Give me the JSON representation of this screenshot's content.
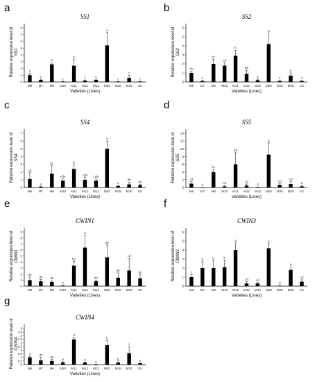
{
  "chart_data": [
    {
      "type": "bar",
      "panel": "a",
      "title": "SS1",
      "xlabel": "Varieties (Lines)",
      "ylabel": "Relative expression level of",
      "ylabel_gene": "SS1",
      "ylim": [
        0,
        8
      ],
      "yticks": [
        0,
        1,
        2,
        3,
        4,
        5,
        6,
        7,
        8
      ],
      "categories": [
        "M6",
        "M7",
        "M8",
        "M10",
        "M11",
        "M12",
        "M13",
        "M20",
        "M28",
        "M30",
        "CK"
      ],
      "values": [
        1.0,
        0.3,
        2.6,
        0.05,
        2.4,
        0.2,
        0.3,
        5.4,
        0.05,
        0.6,
        0.05
      ],
      "errors": [
        0.3,
        0.1,
        0.25,
        0.02,
        0.9,
        0.1,
        0.1,
        1.9,
        0.02,
        0.35,
        0.02
      ],
      "letters": [
        "c",
        "c",
        "b",
        "c",
        "b",
        "c",
        "c",
        "a",
        "c",
        "c",
        "c"
      ]
    },
    {
      "type": "bar",
      "panel": "b",
      "title": "SS2",
      "xlabel": "Varieties (Lines)",
      "ylabel": "Relative expression level of",
      "ylabel_gene": "SS2",
      "ylim": [
        0,
        6
      ],
      "yticks": [
        0,
        1,
        2,
        3,
        4,
        5,
        6
      ],
      "categories": [
        "M6",
        "M7",
        "M8",
        "M10",
        "M11",
        "M12",
        "M13",
        "M20",
        "M28",
        "M30",
        "CK"
      ],
      "values": [
        1.0,
        0.1,
        2.0,
        1.8,
        2.9,
        0.9,
        0.2,
        4.2,
        0.1,
        0.7,
        0.1
      ],
      "errors": [
        0.2,
        0.05,
        0.5,
        0.3,
        0.6,
        0.4,
        0.1,
        1.2,
        0.05,
        0.3,
        0.05
      ],
      "letters": [
        "de",
        "e",
        "bc",
        "cd",
        "b",
        "de",
        "e",
        "a",
        "e",
        "e",
        "e"
      ]
    },
    {
      "type": "bar",
      "panel": "c",
      "title": "SS4",
      "xlabel": "Varieties (Lines)",
      "ylabel": "Relative expression level of",
      "ylabel_gene": "SS4",
      "ylim": [
        0,
        7
      ],
      "yticks": [
        0,
        1,
        2,
        3,
        4,
        5,
        6,
        7
      ],
      "categories": [
        "M6",
        "M7",
        "M8",
        "M10",
        "M11",
        "M12",
        "M13",
        "M20",
        "M28",
        "M30",
        "CK"
      ],
      "values": [
        1.1,
        0.1,
        1.8,
        0.9,
        2.4,
        1.0,
        0.9,
        5.0,
        0.2,
        0.4,
        0.3
      ],
      "errors": [
        0.8,
        0.05,
        1.0,
        0.2,
        0.5,
        0.3,
        0.2,
        1.0,
        0.1,
        0.3,
        0.1
      ],
      "letters": [
        "cd",
        "e",
        "bc",
        "cde",
        "b",
        "cde",
        "cde",
        "a",
        "e",
        "de",
        "de"
      ]
    },
    {
      "type": "bar",
      "panel": "d",
      "title": "SS5",
      "xlabel": "Varieties (Lines)",
      "ylabel": "Relative expression level of",
      "ylabel_gene": "SS5",
      "ylim": [
        0,
        14
      ],
      "yticks": [
        0,
        2,
        4,
        6,
        8,
        10,
        12,
        14
      ],
      "categories": [
        "M6",
        "M7",
        "M8",
        "M10",
        "M11",
        "M12",
        "M13",
        "M20",
        "M28",
        "M30",
        "CK"
      ],
      "values": [
        1.0,
        0.05,
        4.0,
        0.3,
        6.0,
        0.5,
        0.1,
        8.5,
        0.7,
        0.9,
        0.3
      ],
      "errors": [
        0.5,
        0.02,
        0.7,
        0.2,
        3.0,
        0.4,
        0.05,
        3.0,
        0.3,
        0.6,
        0.2
      ],
      "letters": [
        "cd",
        "d",
        "bc",
        "cd",
        "ab",
        "cd",
        "d",
        "a",
        "cd",
        "cd",
        "d"
      ]
    },
    {
      "type": "bar",
      "panel": "e",
      "title": "CWIN1",
      "xlabel": "Varieties (Lines)",
      "ylabel": "Relative expression level of",
      "ylabel_gene": "CWIN1",
      "ylim": [
        0,
        9
      ],
      "yticks": [
        0,
        1,
        2,
        3,
        4,
        5,
        6,
        7,
        8,
        9
      ],
      "categories": [
        "M6",
        "M7",
        "M8",
        "M10",
        "M11",
        "M12",
        "M13",
        "M20",
        "M28",
        "M30",
        "CK"
      ],
      "values": [
        1.0,
        0.8,
        0.7,
        0.1,
        3.4,
        6.4,
        0.8,
        4.8,
        1.4,
        2.6,
        1.3
      ],
      "errors": [
        0.5,
        0.3,
        0.2,
        0.05,
        0.7,
        2.0,
        0.2,
        2.0,
        0.8,
        2.0,
        0.6
      ],
      "letters": [
        "de",
        "de",
        "de",
        "e",
        "bc",
        "a",
        "de",
        "ab",
        "de",
        "cd",
        "de"
      ]
    },
    {
      "type": "bar",
      "panel": "f",
      "title": "CWIN3",
      "xlabel": "Varieties (Lines)",
      "ylabel": "Relative expression level of",
      "ylabel_gene": "CWIN3",
      "ylim": [
        0,
        6
      ],
      "yticks": [
        0,
        1,
        2,
        3,
        4,
        5,
        6
      ],
      "categories": [
        "M6",
        "M7",
        "M8",
        "M10",
        "M11",
        "M12",
        "M13",
        "M20",
        "M28",
        "M30",
        "CK"
      ],
      "values": [
        1.0,
        2.0,
        2.0,
        2.1,
        4.0,
        0.3,
        0.3,
        4.2,
        0.05,
        1.8,
        0.5
      ],
      "errors": [
        0.3,
        0.7,
        0.8,
        0.8,
        0.8,
        0.2,
        0.1,
        0.5,
        0.02,
        0.3,
        0.2
      ],
      "letters": [
        "c",
        "b",
        "b",
        "b",
        "a",
        "cd",
        "cd",
        "a",
        "d",
        "b",
        "cd"
      ]
    },
    {
      "type": "bar",
      "panel": "g",
      "title": "CWIN4",
      "xlabel": "Varieties (Lines)",
      "ylabel": "Relative expression level of",
      "ylabel_gene": "CWIN4",
      "ylim": [
        0,
        5
      ],
      "yticks": [
        0,
        0.5,
        1,
        1.5,
        2,
        2.5,
        3,
        3.5,
        4,
        4.5,
        5
      ],
      "categories": [
        "M6",
        "M7",
        "M8",
        "M10",
        "M11",
        "M12",
        "M13",
        "M20",
        "M28",
        "M30",
        "CK"
      ],
      "values": [
        1.0,
        0.6,
        0.5,
        0.3,
        3.5,
        0.3,
        0.05,
        2.7,
        0.3,
        1.6,
        0.2
      ],
      "errors": [
        0.1,
        0.4,
        0.2,
        0.1,
        0.3,
        0.05,
        0.02,
        0.6,
        0.2,
        0.9,
        0.05
      ],
      "letters": [
        "d",
        "de",
        "de",
        "e",
        "a",
        "e",
        "e",
        "b",
        "e",
        "c",
        "e"
      ]
    }
  ]
}
